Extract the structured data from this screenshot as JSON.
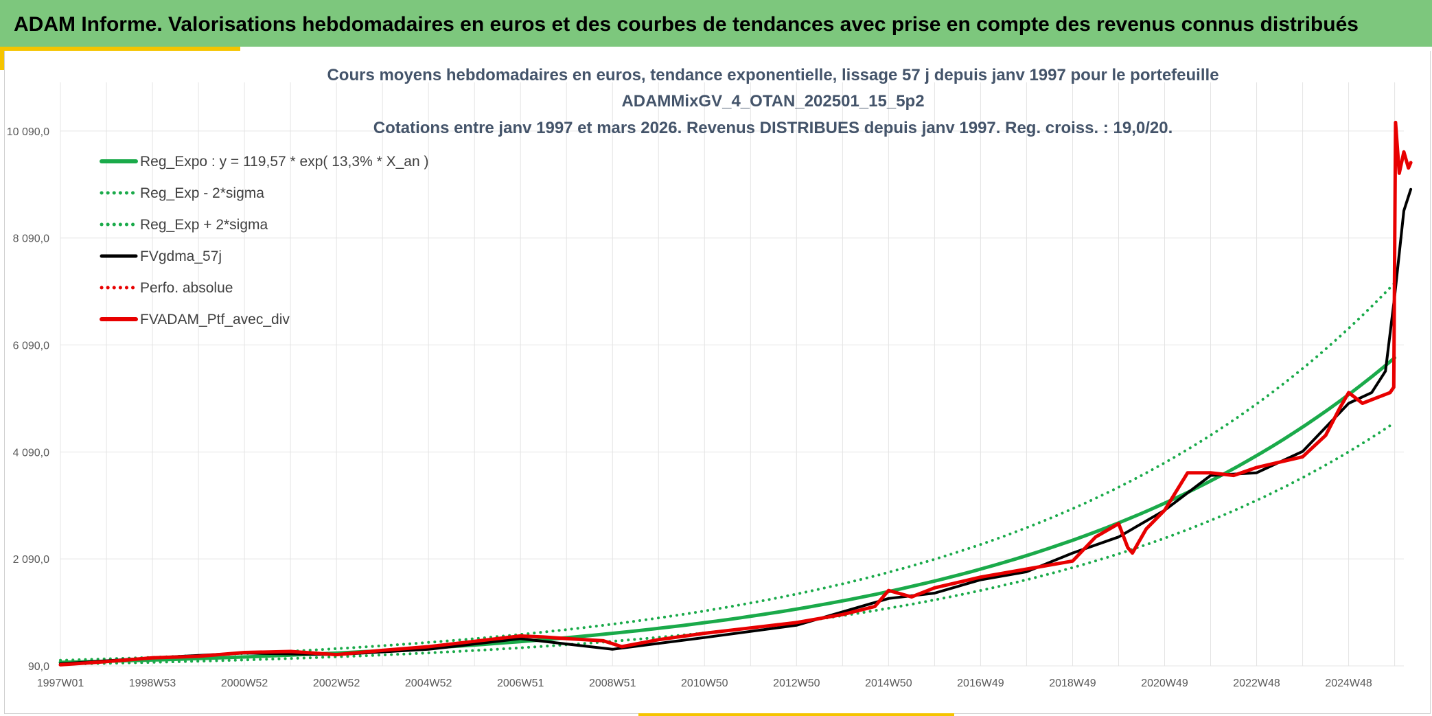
{
  "header": {
    "banner_title": "ADAM Informe. Valorisations hebdomadaires en euros et des courbes de tendances avec prise en compte des revenus connus distribués"
  },
  "colors": {
    "banner": "#7dc77d",
    "accent": "#f5c400",
    "trend": "#1aaa4a",
    "smooth": "#000000",
    "portfolio": "#e80000"
  },
  "chart_data": {
    "type": "line",
    "title_lines": [
      "Cours moyens hebdomadaires en euros, tendance exponentielle, lissage 57 j depuis janv 1997 pour le portefeuille",
      "ADAMMixGV_4_OTAN_202501_15_5p2",
      "Cotations entre janv 1997 et mars 2026. Revenus DISTRIBUES depuis janv 1997. Reg. croiss. : 19,0/20."
    ],
    "x_tick_labels": [
      "1997W01",
      "1998W53",
      "2000W52",
      "2002W52",
      "2004W52",
      "2006W51",
      "2008W51",
      "2010W50",
      "2012W50",
      "2014W50",
      "2016W49",
      "2018W49",
      "2020W49",
      "2022W48",
      "2024W48"
    ],
    "x_tick_years": [
      1997,
      1999,
      2001,
      2003,
      2005,
      2007,
      2009,
      2011,
      2013,
      2015,
      2017,
      2019,
      2021,
      2023,
      2025
    ],
    "xlim": [
      1997,
      2026.2
    ],
    "y_tick_values": [
      90,
      2090,
      4090,
      6090,
      8090,
      10090
    ],
    "y_tick_labels": [
      "90,0",
      "2 090,0",
      "4 090,0",
      "6 090,0",
      "8 090,0",
      "10 090,0"
    ],
    "ylim": [
      90,
      11000
    ],
    "grid": true,
    "legend_position": "top-left",
    "series": [
      {
        "name": "Reg_Expo : y = 119,57 * exp( 13,3% *  X_an )",
        "style": "solid-thick",
        "color": "#1aaa4a",
        "x": [
          1997,
          2026
        ],
        "y": [
          156,
          5850
        ]
      },
      {
        "name": "Reg_Exp - 2*sigma",
        "style": "dotted",
        "color": "#1aaa4a",
        "x": [
          1997,
          2026
        ],
        "y": [
          122,
          4640
        ]
      },
      {
        "name": "Reg_Exp + 2*sigma",
        "style": "dotted",
        "color": "#1aaa4a",
        "x": [
          1997,
          2026
        ],
        "y": [
          195,
          7250
        ]
      },
      {
        "name": "FVgdma_57j",
        "style": "solid",
        "color": "#000000",
        "x": [
          1997,
          1999,
          2001,
          2003,
          2005,
          2007,
          2008,
          2009,
          2011,
          2013,
          2015,
          2016,
          2017,
          2018,
          2019,
          2020,
          2021,
          2022,
          2023,
          2024,
          2025,
          2025.5,
          2025.8,
          2026,
          2026.2,
          2026.35
        ],
        "y": [
          130,
          240,
          330,
          300,
          400,
          600,
          500,
          400,
          620,
          850,
          1350,
          1450,
          1700,
          1850,
          2200,
          2500,
          3000,
          3650,
          3700,
          4100,
          5000,
          5200,
          5600,
          7000,
          8600,
          9000
        ]
      },
      {
        "name": "Perfo. absolue",
        "style": "dotted",
        "color": "#e80000",
        "x": [],
        "y": []
      },
      {
        "name": "FVADAM_Ptf_avec_div",
        "style": "solid-thick",
        "color": "#e80000",
        "x": [
          1997,
          1998,
          1999,
          2000,
          2001,
          2002,
          2003,
          2004,
          2005,
          2006,
          2007,
          2007.5,
          2008,
          2008.8,
          2009.2,
          2010,
          2011,
          2012,
          2013,
          2014,
          2014.7,
          2015,
          2015.5,
          2016,
          2017,
          2018,
          2019,
          2019.5,
          2020,
          2020.2,
          2020.3,
          2020.6,
          2021,
          2021.5,
          2022,
          2022.5,
          2023,
          2023.5,
          2024,
          2024.5,
          2024.8,
          2025,
          2025.3,
          2025.6,
          2025.9,
          2025.98,
          2026.02,
          2026.1,
          2026.2,
          2026.3,
          2026.35
        ],
        "y": [
          110,
          170,
          240,
          270,
          340,
          360,
          300,
          380,
          450,
          550,
          650,
          630,
          600,
          560,
          450,
          580,
          700,
          800,
          900,
          1050,
          1200,
          1500,
          1380,
          1550,
          1750,
          1900,
          2050,
          2500,
          2750,
          2300,
          2200,
          2650,
          3000,
          3700,
          3700,
          3650,
          3800,
          3900,
          4000,
          4400,
          4900,
          5200,
          5000,
          5100,
          5200,
          5300,
          10250,
          9300,
          9700,
          9400,
          9500
        ]
      }
    ]
  }
}
